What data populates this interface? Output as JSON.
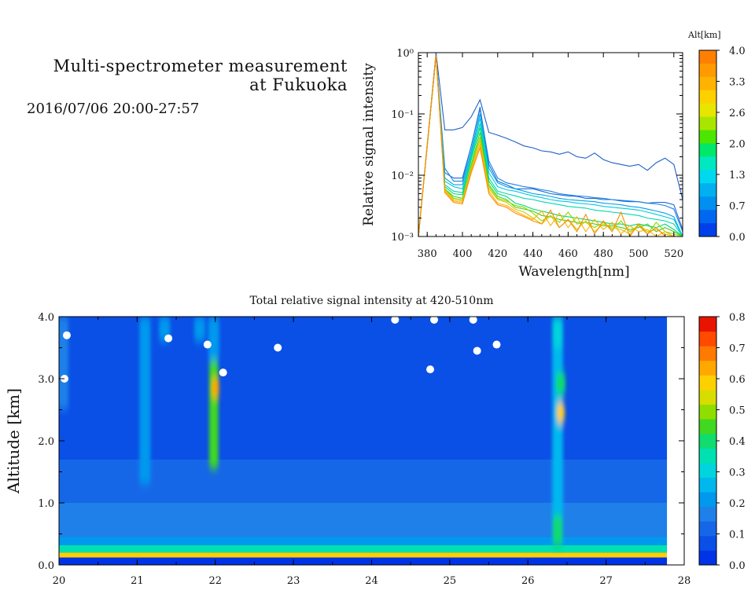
{
  "header": {
    "title_line1": "Multi-spectrometer measurement",
    "title_line2": "at Fukuoka",
    "datetime": "2016/07/06 20:00-27:57"
  },
  "chart_data": [
    {
      "type": "line",
      "xlabel": "Wavelength[nm]",
      "ylabel": "Relative signal intensity",
      "xlim": [
        375,
        525
      ],
      "ylim": [
        0.001,
        1
      ],
      "yscale": "log",
      "x_ticks": [
        380,
        400,
        420,
        440,
        460,
        480,
        500,
        520
      ],
      "y_ticks": [
        "10⁰",
        "10⁻¹",
        "10⁻²",
        "10⁻³"
      ],
      "colorbar_title": "Alt[km]",
      "colorbar_ticks": [
        "4.0",
        "3.3",
        "2.6",
        "2.0",
        "1.3",
        "0.7",
        "0.0"
      ],
      "colorbar_colors": [
        "#ff7f00",
        "#ff9a00",
        "#ffb300",
        "#ffd000",
        "#e6e600",
        "#a8e600",
        "#4ce600",
        "#00e86a",
        "#00e8c0",
        "#00d8f0",
        "#00b0f0",
        "#0090f0",
        "#0068f0",
        "#0040e8"
      ],
      "x": [
        375,
        385,
        390,
        395,
        400,
        405,
        410,
        415,
        420,
        425,
        430,
        435,
        440,
        445,
        450,
        455,
        460,
        465,
        470,
        475,
        480,
        485,
        490,
        495,
        500,
        505,
        510,
        515,
        520,
        525
      ],
      "series": [
        {
          "color": "#1f5fc8",
          "values": [
            0.001,
            1.0,
            0.055,
            0.055,
            0.06,
            0.09,
            0.17,
            0.05,
            0.045,
            0.04,
            0.035,
            0.03,
            0.028,
            0.025,
            0.024,
            0.022,
            0.024,
            0.02,
            0.019,
            0.023,
            0.018,
            0.016,
            0.015,
            0.014,
            0.015,
            0.012,
            0.016,
            0.019,
            0.015,
            0.004
          ]
        },
        {
          "color": "#1a6ad8",
          "values": [
            0.001,
            0.9,
            0.011,
            0.009,
            0.009,
            0.03,
            0.13,
            0.015,
            0.008,
            0.007,
            0.006,
            0.006,
            0.006,
            0.0055,
            0.005,
            0.0048,
            0.0046,
            0.0045,
            0.0042,
            0.0042,
            0.004,
            0.004,
            0.0038,
            0.0037,
            0.0037,
            0.0035,
            0.0036,
            0.0036,
            0.0033,
            0.0013
          ]
        },
        {
          "color": "#1e80e0",
          "values": [
            0.001,
            0.9,
            0.013,
            0.008,
            0.008,
            0.03,
            0.12,
            0.017,
            0.009,
            0.0075,
            0.007,
            0.0065,
            0.0062,
            0.0058,
            0.0055,
            0.005,
            0.0048,
            0.0046,
            0.0045,
            0.0043,
            0.0042,
            0.004,
            0.0039,
            0.0038,
            0.0037,
            0.0035,
            0.0034,
            0.0032,
            0.0028,
            0.0012
          ]
        },
        {
          "color": "#00a0e8",
          "values": [
            0.001,
            0.9,
            0.009,
            0.007,
            0.007,
            0.025,
            0.1,
            0.013,
            0.0075,
            0.0065,
            0.006,
            0.0055,
            0.005,
            0.0048,
            0.0045,
            0.0042,
            0.004,
            0.0039,
            0.0038,
            0.0037,
            0.0035,
            0.0034,
            0.0033,
            0.0031,
            0.003,
            0.0028,
            0.0026,
            0.0024,
            0.0021,
            0.001
          ]
        },
        {
          "color": "#00c8e0",
          "values": [
            0.001,
            0.9,
            0.008,
            0.0065,
            0.006,
            0.022,
            0.085,
            0.011,
            0.0065,
            0.0058,
            0.0055,
            0.005,
            0.0046,
            0.0043,
            0.004,
            0.0038,
            0.0037,
            0.0035,
            0.0034,
            0.0033,
            0.0031,
            0.003,
            0.0029,
            0.0028,
            0.0027,
            0.0025,
            0.0023,
            0.0021,
            0.0019,
            0.001
          ]
        },
        {
          "color": "#00d8b0",
          "values": [
            0.001,
            0.9,
            0.007,
            0.0055,
            0.0052,
            0.02,
            0.07,
            0.009,
            0.0055,
            0.005,
            0.0046,
            0.0042,
            0.004,
            0.0037,
            0.0035,
            0.0033,
            0.0031,
            0.003,
            0.0029,
            0.0027,
            0.0026,
            0.0025,
            0.0024,
            0.0023,
            0.0022,
            0.002,
            0.0019,
            0.0018,
            0.0016,
            0.001
          ]
        },
        {
          "color": "#00d870",
          "values": [
            0.001,
            0.9,
            0.0065,
            0.005,
            0.0048,
            0.018,
            0.06,
            0.008,
            0.005,
            0.0045,
            0.0035,
            0.0032,
            0.0028,
            0.0026,
            0.0024,
            0.0022,
            0.0021,
            0.002,
            0.0019,
            0.0018,
            0.0017,
            0.0016,
            0.0016,
            0.0015,
            0.0016,
            0.0015,
            0.0014,
            0.0016,
            0.0013,
            0.001
          ]
        },
        {
          "color": "#40d020",
          "values": [
            0.001,
            0.9,
            0.006,
            0.0045,
            0.0042,
            0.015,
            0.05,
            0.007,
            0.0045,
            0.004,
            0.003,
            0.0028,
            0.0026,
            0.0022,
            0.0021,
            0.0019,
            0.0018,
            0.0017,
            0.0017,
            0.0016,
            0.0015,
            0.0015,
            0.0014,
            0.0013,
            0.0014,
            0.0016,
            0.0012,
            0.0014,
            0.0012,
            0.001
          ]
        },
        {
          "color": "#90d800",
          "values": [
            0.001,
            0.9,
            0.006,
            0.0042,
            0.004,
            0.014,
            0.042,
            0.0065,
            0.0042,
            0.0038,
            0.0032,
            0.003,
            0.0024,
            0.0018,
            0.0022,
            0.0017,
            0.0025,
            0.0016,
            0.0017,
            0.0014,
            0.0017,
            0.0013,
            0.0018,
            0.0012,
            0.0015,
            0.0011,
            0.0017,
            0.0012,
            0.0011,
            0.001
          ]
        },
        {
          "color": "#d8c800",
          "values": [
            0.001,
            0.9,
            0.0058,
            0.004,
            0.0038,
            0.013,
            0.037,
            0.006,
            0.004,
            0.0036,
            0.0028,
            0.0025,
            0.002,
            0.0016,
            0.0022,
            0.0014,
            0.0019,
            0.0013,
            0.0018,
            0.0012,
            0.0016,
            0.0014,
            0.0013,
            0.0011,
            0.0016,
            0.0012,
            0.0013,
            0.0011,
            0.001,
            0.001
          ]
        },
        {
          "color": "#ffb000",
          "values": [
            0.001,
            0.9,
            0.0055,
            0.0038,
            0.0036,
            0.012,
            0.032,
            0.0055,
            0.0035,
            0.0032,
            0.0026,
            0.0022,
            0.0019,
            0.0026,
            0.0015,
            0.0024,
            0.0014,
            0.0021,
            0.0012,
            0.0019,
            0.0013,
            0.0017,
            0.0011,
            0.0015,
            0.0012,
            0.0013,
            0.001,
            0.0012,
            0.001,
            0.001
          ]
        },
        {
          "color": "#ff8a00",
          "values": [
            0.001,
            0.9,
            0.0052,
            0.0036,
            0.0034,
            0.011,
            0.028,
            0.005,
            0.0033,
            0.003,
            0.0024,
            0.0021,
            0.0018,
            0.0016,
            0.0027,
            0.0014,
            0.0019,
            0.0012,
            0.0023,
            0.0011,
            0.0018,
            0.0012,
            0.0025,
            0.001,
            0.0016,
            0.0011,
            0.0014,
            0.001,
            0.001,
            0.001
          ]
        }
      ]
    },
    {
      "type": "heatmap",
      "title": "Total relative signal intensity at 420-510nm",
      "ylabel": "Altitude [km]",
      "xlim": [
        20,
        28
      ],
      "ylim": [
        0,
        4
      ],
      "x_ticks": [
        "20",
        "21",
        "22",
        "23",
        "24",
        "25",
        "26",
        "27",
        "28"
      ],
      "y_ticks": [
        "0.0",
        "1.0",
        "2.0",
        "3.0",
        "4.0"
      ],
      "data_end_x": 27.78,
      "colorbar_ticks": [
        "0.8",
        "0.7",
        "0.6",
        "0.5",
        "0.4",
        "0.3",
        "0.2",
        "0.1",
        "0.0"
      ],
      "colormap": [
        "#0033e6",
        "#0a4fe6",
        "#1667e8",
        "#1e80e8",
        "#0099ee",
        "#00b8ee",
        "#00d4dd",
        "#00e0b0",
        "#10dc70",
        "#40d820",
        "#90dd00",
        "#d8dd00",
        "#ffd000",
        "#ffa800",
        "#ff7a00",
        "#ff4a00",
        "#e81400"
      ],
      "background_level": 0.07,
      "layers": [
        {
          "alt_min": 0.0,
          "alt_max": 0.12,
          "value": 0.0
        },
        {
          "alt_min": 0.12,
          "alt_max": 0.2,
          "value": 0.6
        },
        {
          "alt_min": 0.2,
          "alt_max": 0.32,
          "value": 0.35
        },
        {
          "alt_min": 0.32,
          "alt_max": 0.45,
          "value": 0.2
        },
        {
          "alt_min": 0.45,
          "alt_max": 1.0,
          "value": 0.16
        },
        {
          "alt_min": 1.0,
          "alt_max": 1.7,
          "value": 0.13
        },
        {
          "alt_min": 1.7,
          "alt_max": 4.0,
          "value": 0.08
        }
      ],
      "plumes": [
        {
          "time": 26.38,
          "alt_min": 0.3,
          "alt_max": 4.0,
          "value": 0.25
        },
        {
          "time": 26.38,
          "alt_min": 0.3,
          "alt_max": 0.8,
          "value": 0.4
        },
        {
          "time": 26.42,
          "alt_min": 2.75,
          "alt_max": 3.1,
          "value": 0.42
        },
        {
          "time": 26.42,
          "alt_min": 2.3,
          "alt_max": 2.6,
          "value": 0.6
        },
        {
          "time": 26.38,
          "alt_min": 3.5,
          "alt_max": 4.0,
          "value": 0.3
        },
        {
          "time": 21.98,
          "alt_min": 1.55,
          "alt_max": 3.3,
          "value": 0.45
        },
        {
          "time": 22.0,
          "alt_min": 2.7,
          "alt_max": 3.0,
          "value": 0.65
        },
        {
          "time": 21.98,
          "alt_min": 3.3,
          "alt_max": 4.0,
          "value": 0.2
        },
        {
          "time": 21.1,
          "alt_min": 1.3,
          "alt_max": 4.0,
          "value": 0.2
        },
        {
          "time": 21.35,
          "alt_min": 3.6,
          "alt_max": 4.0,
          "value": 0.2
        },
        {
          "time": 21.8,
          "alt_min": 3.6,
          "alt_max": 4.0,
          "value": 0.22
        },
        {
          "time": 20.05,
          "alt_min": 2.5,
          "alt_max": 4.0,
          "value": 0.18
        }
      ],
      "gaps": [
        {
          "time": 20.1,
          "alt": 3.7
        },
        {
          "time": 20.07,
          "alt": 3.0
        },
        {
          "time": 21.4,
          "alt": 3.65
        },
        {
          "time": 21.9,
          "alt": 3.55
        },
        {
          "time": 22.1,
          "alt": 3.1
        },
        {
          "time": 22.8,
          "alt": 3.5
        },
        {
          "time": 24.3,
          "alt": 3.95
        },
        {
          "time": 24.75,
          "alt": 3.15
        },
        {
          "time": 24.8,
          "alt": 3.95
        },
        {
          "time": 25.35,
          "alt": 3.45
        },
        {
          "time": 25.6,
          "alt": 3.55
        },
        {
          "time": 25.3,
          "alt": 3.95
        }
      ]
    }
  ]
}
